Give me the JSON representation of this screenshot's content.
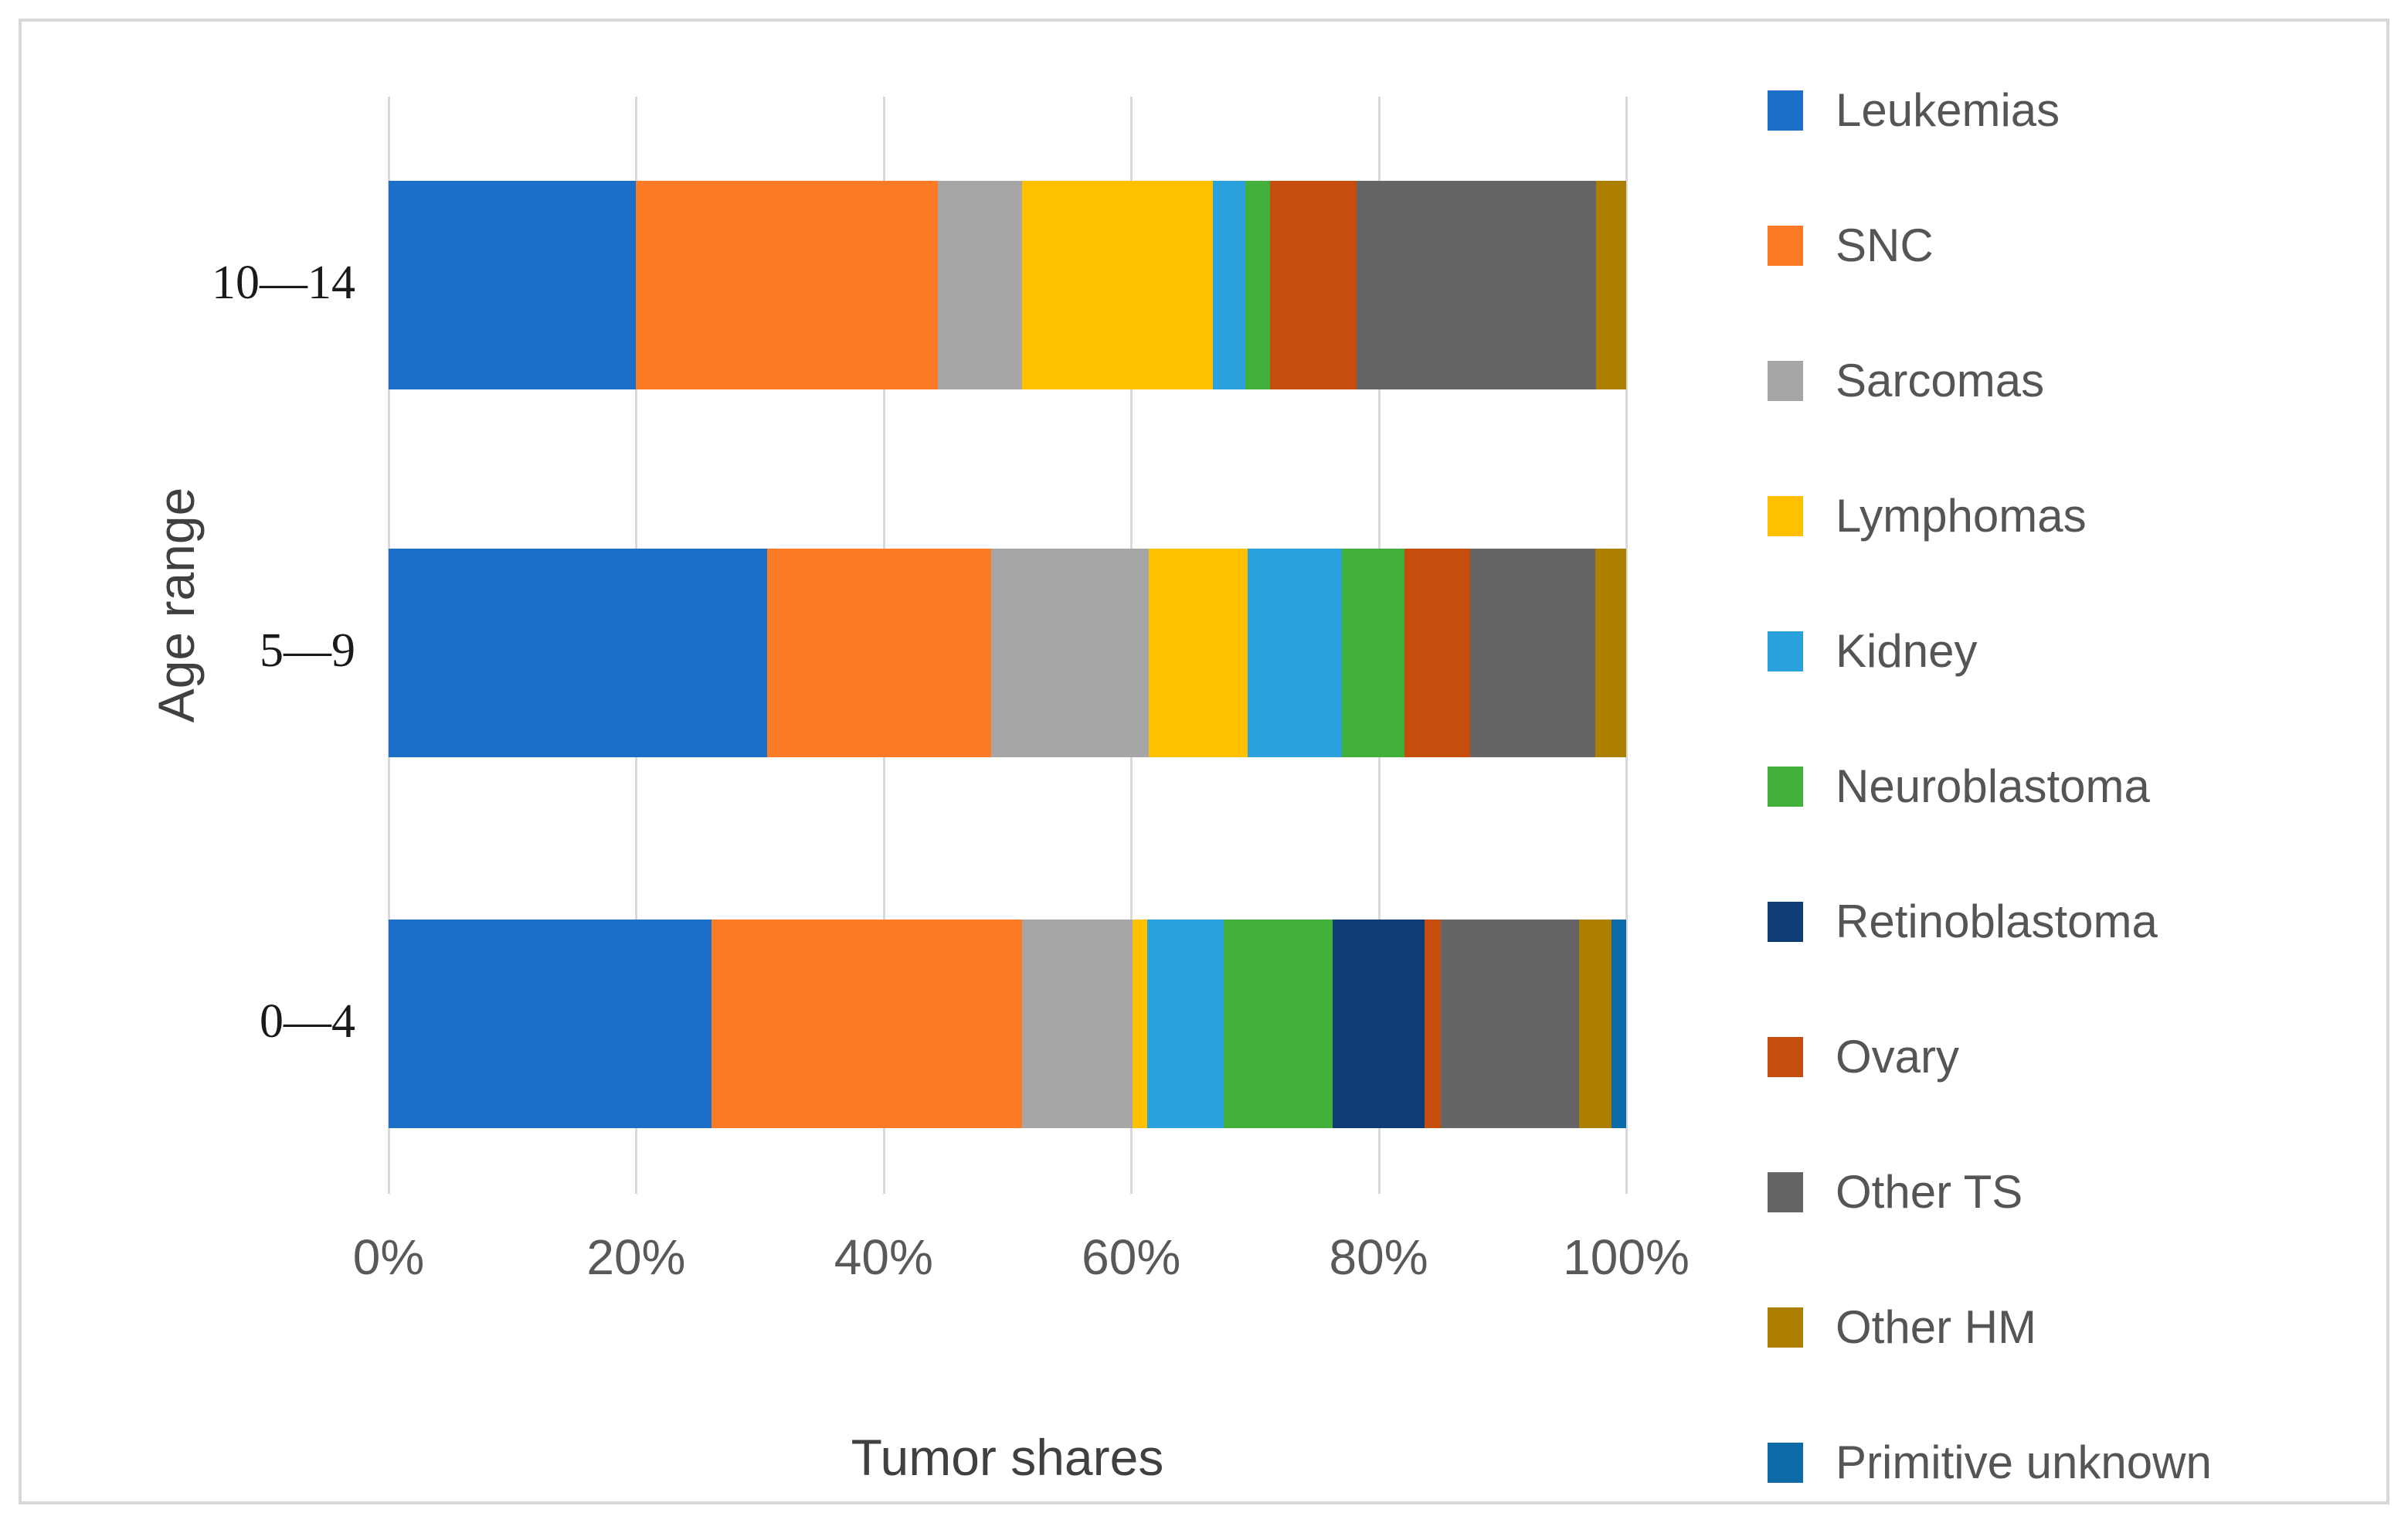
{
  "figure": {
    "background": "#ffffff",
    "border_color": "#d8d8d8",
    "gridline_color": "#d9d9d9",
    "tick_text_color": "#595959",
    "title_text_color": "#404040"
  },
  "chart_data": {
    "type": "bar",
    "orientation": "horizontal",
    "stacked": true,
    "title": "",
    "xlabel": "Tumor shares",
    "ylabel": "Age range",
    "xlim": [
      0,
      100
    ],
    "unit": "%",
    "grid": true,
    "legend_position": "right",
    "x_ticks": [
      {
        "label": "0%",
        "pct": 0
      },
      {
        "label": "20%",
        "pct": 20
      },
      {
        "label": "40%",
        "pct": 40
      },
      {
        "label": "60%",
        "pct": 60
      },
      {
        "label": "80%",
        "pct": 80
      },
      {
        "label": "100%",
        "pct": 100
      }
    ],
    "categories_top_to_bottom": [
      "10—14",
      "5—9",
      "0—4"
    ],
    "series": [
      {
        "name": "Leukemias",
        "color": "#1b6fc9",
        "values": [
          20.0,
          30.6,
          26.1
        ]
      },
      {
        "name": "SNC",
        "color": "#fc7b26",
        "values": [
          24.4,
          18.1,
          25.1
        ]
      },
      {
        "name": "Sarcomas",
        "color": "#a6a6a6",
        "values": [
          6.8,
          12.7,
          8.9
        ]
      },
      {
        "name": "Lymphomas",
        "color": "#ffc000",
        "values": [
          15.4,
          8.0,
          1.2
        ]
      },
      {
        "name": "Kidney",
        "color": "#2aa0dc",
        "values": [
          2.6,
          7.6,
          6.2
        ]
      },
      {
        "name": "Neuroblastoma",
        "color": "#42b13c",
        "values": [
          2.0,
          5.1,
          8.8
        ]
      },
      {
        "name": "Retinoblastoma",
        "color": "#0e3e74",
        "values": [
          0.0,
          0.0,
          7.4
        ]
      },
      {
        "name": "Ovary",
        "color": "#c54e0e",
        "values": [
          7.0,
          5.3,
          1.3
        ]
      },
      {
        "name": "Other TS",
        "color": "#656565",
        "values": [
          19.4,
          10.1,
          11.2
        ]
      },
      {
        "name": "Other HM",
        "color": "#ad7f00",
        "values": [
          2.4,
          2.5,
          2.6
        ]
      },
      {
        "name": "Primitive unknown",
        "color": "#0c6ba8",
        "values": [
          0.0,
          0.0,
          1.2
        ]
      }
    ]
  }
}
